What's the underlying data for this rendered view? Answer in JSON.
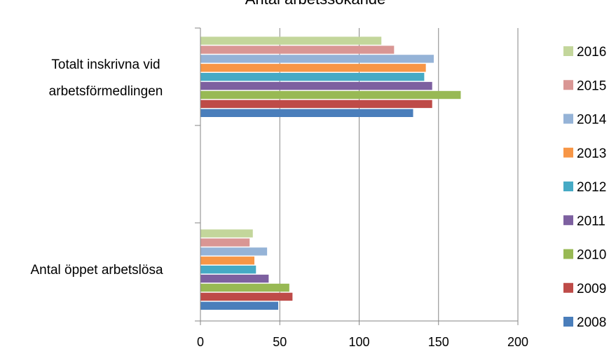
{
  "chart_data": {
    "type": "bar",
    "orientation": "horizontal",
    "title": "Antal arbetssökande",
    "categories": [
      "Totalt inskrivna vid arbetsförmedlingen",
      "Antal öppet arbetslösa"
    ],
    "category_lines": [
      [
        "Totalt inskrivna vid",
        "arbetsförmedlingen"
      ],
      [
        "Antal öppet arbetslösa"
      ]
    ],
    "series": [
      {
        "name": "2008",
        "color": "#4A7EBB",
        "values": [
          134,
          49
        ]
      },
      {
        "name": "2009",
        "color": "#BE4B48",
        "values": [
          146,
          58
        ]
      },
      {
        "name": "2010",
        "color": "#98B954",
        "values": [
          164,
          56
        ]
      },
      {
        "name": "2011",
        "color": "#7D60A0",
        "values": [
          146,
          43
        ]
      },
      {
        "name": "2012",
        "color": "#46AAC5",
        "values": [
          141,
          35
        ]
      },
      {
        "name": "2013",
        "color": "#F79646",
        "values": [
          142,
          34
        ]
      },
      {
        "name": "2014",
        "color": "#95B3D7",
        "values": [
          147,
          42
        ]
      },
      {
        "name": "2015",
        "color": "#D99694",
        "values": [
          122,
          31
        ]
      },
      {
        "name": "2016",
        "color": "#C3D69B",
        "values": [
          114,
          33
        ]
      }
    ],
    "xlim": [
      0,
      200
    ],
    "xticks": [
      "0",
      "50",
      "100",
      "150",
      "200"
    ],
    "grid": "vertical",
    "legend": "right"
  }
}
